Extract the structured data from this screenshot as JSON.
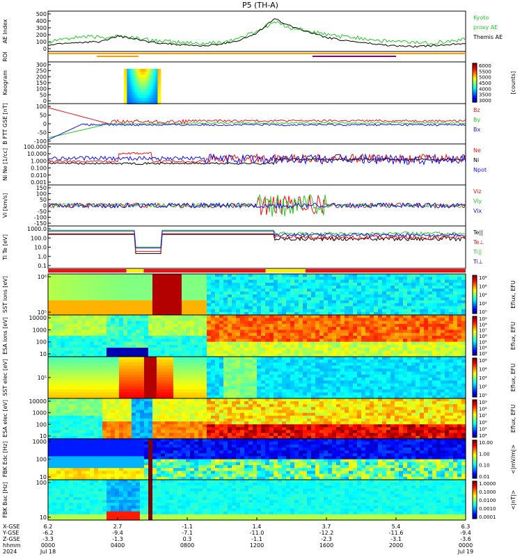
{
  "title": "P5 (TH-A)",
  "colors": {
    "black": "#000000",
    "green": "#22cc22",
    "red": "#ee1111",
    "blue": "#1111ee",
    "orange": "#ff9900",
    "purple": "#880088",
    "yellow": "#ffee00"
  },
  "panels": [
    {
      "id": "ae",
      "ylabel": "AE Index",
      "ticks": [
        "500",
        "400",
        "300",
        "200",
        "100",
        "0"
      ],
      "right": [
        {
          "text": "Kyoto",
          "color": "green"
        },
        {
          "text": "proxy AE",
          "color": "green"
        },
        {
          "text": "Themis AE",
          "color": "black"
        }
      ]
    },
    {
      "id": "roi",
      "ylabel": "ROI",
      "ticks": [],
      "right": []
    },
    {
      "id": "keogram",
      "ylabel": "Keogram",
      "ticks": [
        "300",
        "250",
        "200",
        "150",
        "100",
        "50",
        "0"
      ],
      "right": []
    },
    {
      "id": "bfield",
      "ylabel": "B FTT GSE [nT]",
      "ticks": [
        "100",
        "50",
        "0",
        "-50",
        "-100"
      ],
      "right": [
        {
          "text": "Bz",
          "color": "red"
        },
        {
          "text": "By",
          "color": "green"
        },
        {
          "text": "Bx",
          "color": "blue"
        }
      ]
    },
    {
      "id": "density",
      "ylabel": "Ni Ne [1/cc]",
      "ticks": [
        "100.000",
        "10.000",
        "1.000",
        "0.100",
        "0.010",
        "0.001"
      ],
      "right": [
        {
          "text": "Ne",
          "color": "red"
        },
        {
          "text": "Ni",
          "color": "black"
        },
        {
          "text": "Npot",
          "color": "blue"
        }
      ]
    },
    {
      "id": "velocity",
      "ylabel": "Vi [km/s]",
      "ticks": [
        "150",
        "100",
        "50",
        "0",
        "-50",
        "-100",
        "-150"
      ],
      "right": [
        {
          "text": "Viz",
          "color": "red"
        },
        {
          "text": "Viy",
          "color": "green"
        },
        {
          "text": "Vix",
          "color": "blue"
        }
      ]
    },
    {
      "id": "temp",
      "ylabel": "Ti Te [eV]",
      "ticks": [
        "1000.0",
        "100.0",
        "10.0",
        "1.0",
        "0.1"
      ],
      "right": [
        {
          "text": "Te||",
          "color": "black"
        },
        {
          "text": "Te⊥",
          "color": "red"
        },
        {
          "text": "Ti||",
          "color": "green"
        },
        {
          "text": "Ti⊥",
          "color": "blue"
        }
      ]
    },
    {
      "id": "sst_ion",
      "ylabel": "SST ions [eV]",
      "ticks": [
        "10⁶",
        "10⁵"
      ],
      "right": []
    },
    {
      "id": "esa_ion",
      "ylabel": "ESA ions [eV]",
      "ticks": [
        "10000",
        "1000",
        "100",
        "10"
      ],
      "right": []
    },
    {
      "id": "sst_elec",
      "ylabel": "SST elec [eV]",
      "ticks": [
        "10⁵"
      ],
      "right": []
    },
    {
      "id": "esa_elec",
      "ylabel": "ESA elec [eV]",
      "ticks": [
        "10000",
        "1000",
        "100",
        "10"
      ],
      "right": []
    },
    {
      "id": "fbk_e",
      "ylabel": "FBK Edc [Hz]",
      "ticks": [
        "1000",
        "100",
        "10"
      ],
      "right": []
    },
    {
      "id": "fbk_b",
      "ylabel": "FBK Bac [Hz]",
      "ticks": [
        "100",
        "10"
      ],
      "right": []
    }
  ],
  "colorbars": [
    {
      "panel": "keogram",
      "ticks": [
        "6000",
        "5500",
        "5000",
        "4500",
        "4000",
        "3500",
        "3000"
      ],
      "label": "[counts]"
    },
    {
      "panel": "sst_ion",
      "ticks": [
        "10⁸",
        "10⁶",
        "10⁴",
        "10²",
        "10⁰"
      ],
      "label": "Eflux, EFU"
    },
    {
      "panel": "esa_ion",
      "ticks": [
        "10⁹",
        "10⁸",
        "10⁷",
        "10⁶",
        "10⁵",
        "10⁴",
        "10³"
      ],
      "label": "Eflux, EFU"
    },
    {
      "panel": "sst_elec",
      "ticks": [
        "10⁸",
        "10⁶",
        "10⁴",
        "10²",
        "10⁰"
      ],
      "label": "Eflux, EFU"
    },
    {
      "panel": "esa_elec",
      "ticks": [
        "10⁹",
        "10⁸",
        "10⁷",
        "10⁶",
        "10⁵",
        "10⁴"
      ],
      "label": "Eflux, EFU"
    },
    {
      "panel": "fbk_e",
      "ticks": [
        "10.00",
        "1.00",
        "0.10",
        "0.01"
      ],
      "label": "<|mV/m|>"
    },
    {
      "panel": "fbk_b",
      "ticks": [
        "1.0000",
        "0.1000",
        "0.0100",
        "0.0010",
        "0.0001"
      ],
      "label": "<|nT|>"
    }
  ],
  "xaxis": {
    "row_labels": [
      "X-GSE",
      "Y-GSE",
      "Z-GSE",
      "hhmm",
      "2024"
    ],
    "ticks": [
      {
        "vals": [
          "6.2",
          "-6.2",
          "-3.3",
          "0000",
          "Jul 18"
        ]
      },
      {
        "vals": [
          "2.7",
          "-9.4",
          "-1.3",
          "0400",
          ""
        ]
      },
      {
        "vals": [
          "-1.1",
          "-7.1",
          "0.3",
          "0800",
          ""
        ]
      },
      {
        "vals": [
          "1.4",
          "-11.0",
          "-1.1",
          "1200",
          ""
        ]
      },
      {
        "vals": [
          "3.7",
          "-12.2",
          "-2.3",
          "1600",
          ""
        ]
      },
      {
        "vals": [
          "5.4",
          "-11.6",
          "-3.1",
          "2000",
          ""
        ]
      },
      {
        "vals": [
          "6.3",
          "-9.4",
          "-3.6",
          "0000",
          "Jul 19"
        ]
      }
    ]
  },
  "chart_data": {
    "type": "line",
    "title": "P5 (TH-A)",
    "x_unit": "hhmm",
    "x_range": [
      "2024-07-18 00:00",
      "2024-07-19 00:00"
    ],
    "series": [
      {
        "name": "Kyoto proxy AE",
        "panel": "ae",
        "x_hours": [
          0,
          1,
          2,
          3,
          4,
          5,
          6,
          7,
          8,
          9,
          10,
          11,
          12,
          13,
          14,
          15,
          16,
          17,
          18,
          19,
          20,
          21,
          22,
          23,
          24
        ],
        "values": [
          100,
          150,
          170,
          160,
          180,
          150,
          120,
          100,
          80,
          70,
          90,
          150,
          250,
          380,
          300,
          250,
          200,
          170,
          150,
          120,
          100,
          90,
          80,
          100,
          130
        ]
      },
      {
        "name": "Themis AE",
        "panel": "ae",
        "x_hours": [
          0,
          1,
          2,
          3,
          4,
          5,
          6,
          7,
          8,
          9,
          10,
          11,
          12,
          13,
          14,
          15,
          16,
          17,
          18,
          19,
          20,
          21,
          22,
          23,
          24
        ],
        "values": [
          50,
          80,
          90,
          100,
          180,
          140,
          90,
          70,
          50,
          40,
          70,
          120,
          220,
          430,
          320,
          240,
          160,
          120,
          90,
          60,
          40,
          30,
          40,
          60,
          80
        ]
      }
    ]
  }
}
